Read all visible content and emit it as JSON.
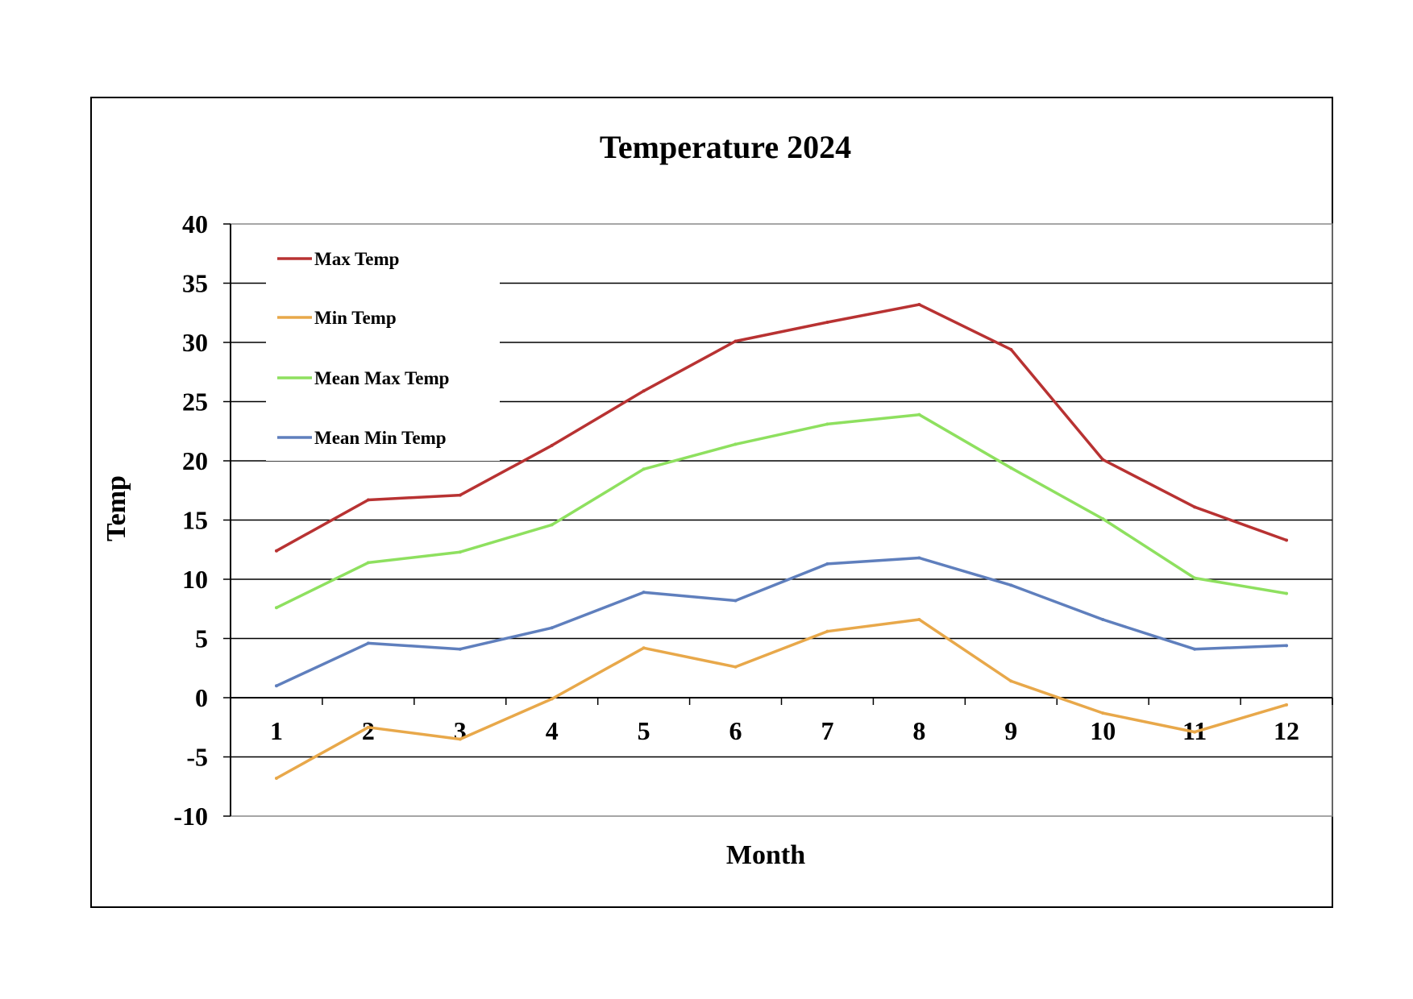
{
  "chart_data": {
    "type": "line",
    "title": "Temperature 2024",
    "xlabel": "Month",
    "ylabel": "Temp",
    "categories": [
      "1",
      "2",
      "3",
      "4",
      "5",
      "6",
      "7",
      "8",
      "9",
      "10",
      "11",
      "12"
    ],
    "ylim": [
      -10,
      40
    ],
    "yticks": [
      40,
      35,
      30,
      25,
      20,
      15,
      10,
      5,
      0,
      -5,
      -10
    ],
    "grid": true,
    "legend_position": "top-left",
    "series": [
      {
        "name": "Max Temp",
        "color": "#b83232",
        "values": [
          12.4,
          16.7,
          17.1,
          21.3,
          25.9,
          30.1,
          31.7,
          33.2,
          29.4,
          20.1,
          16.1,
          13.3
        ]
      },
      {
        "name": "Min Temp",
        "color": "#e8a84a",
        "values": [
          -6.8,
          -2.5,
          -3.5,
          -0.1,
          4.2,
          2.6,
          5.6,
          6.6,
          1.4,
          -1.3,
          -2.9,
          -0.6
        ]
      },
      {
        "name": "Mean Max Temp",
        "color": "#8ee05f",
        "values": [
          7.6,
          11.4,
          12.3,
          14.6,
          19.3,
          21.4,
          23.1,
          23.9,
          19.4,
          15.1,
          10.1,
          8.8
        ]
      },
      {
        "name": "Mean Min Temp",
        "color": "#5f7fbd",
        "values": [
          1.0,
          4.6,
          4.1,
          5.9,
          8.9,
          8.2,
          11.3,
          11.8,
          9.5,
          6.6,
          4.1,
          4.4
        ]
      }
    ]
  }
}
